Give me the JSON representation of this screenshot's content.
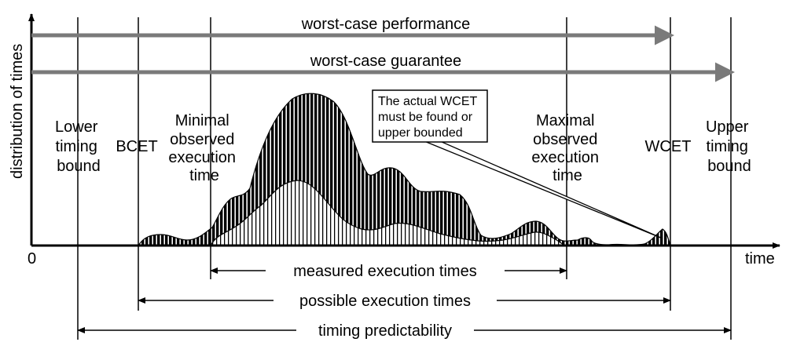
{
  "axes": {
    "y_label": "distribution of times",
    "x_label": "time",
    "origin_label": "0"
  },
  "arrows": {
    "worst_case_performance": "worst-case performance",
    "worst_case_guarantee": "worst-case guarantee",
    "measured": "measured execution times",
    "possible": "possible execution times",
    "predictability": "timing predictability"
  },
  "markers": {
    "lower_timing_bound": [
      "Lower",
      "timing",
      "bound"
    ],
    "bcet": "BCET",
    "min_observed": [
      "Minimal",
      "observed",
      "execution",
      "time"
    ],
    "max_observed": [
      "Maximal",
      "observed",
      "execution",
      "time"
    ],
    "wcet": "WCET",
    "upper_timing_bound": [
      "Upper",
      "timing",
      "bound"
    ]
  },
  "callout": [
    "The actual WCET",
    "must be found or",
    "upper bounded"
  ],
  "colors": {
    "arrow_gray": "#7a7a7a",
    "ink": "#000000"
  }
}
